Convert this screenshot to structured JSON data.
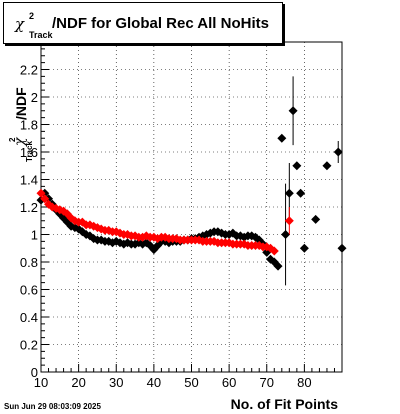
{
  "title": {
    "chi": "χ",
    "sup": "2",
    "sub": "Track",
    "text": "/NDF for Global Rec All NoHits"
  },
  "ylabel": {
    "chi": "χ",
    "sup": "2",
    "sub": "Track",
    "text": "/NDF"
  },
  "xlabel": "No. of Fit Points",
  "date": "Sun Jun 29 08:03:09 2025",
  "chart_data": {
    "type": "scatter",
    "xlim": [
      10,
      90
    ],
    "ylim": [
      0,
      2.4
    ],
    "xticks": [
      10,
      20,
      30,
      40,
      50,
      60,
      70,
      80
    ],
    "yticks": [
      0,
      0.2,
      0.4,
      0.6,
      0.8,
      1,
      1.2,
      1.4,
      1.6,
      1.8,
      2,
      2.2
    ],
    "grid": true,
    "series": [
      {
        "color": "#000000",
        "points": [
          {
            "x": 10,
            "y": 1.25
          },
          {
            "x": 11,
            "y": 1.3
          },
          {
            "x": 12,
            "y": 1.26
          },
          {
            "x": 13,
            "y": 1.22
          },
          {
            "x": 14,
            "y": 1.18
          },
          {
            "x": 15,
            "y": 1.15
          },
          {
            "x": 16,
            "y": 1.12
          },
          {
            "x": 17,
            "y": 1.09
          },
          {
            "x": 18,
            "y": 1.06
          },
          {
            "x": 19,
            "y": 1.05
          },
          {
            "x": 20,
            "y": 1.04
          },
          {
            "x": 21,
            "y": 1.02
          },
          {
            "x": 22,
            "y": 1.0
          },
          {
            "x": 23,
            "y": 0.99
          },
          {
            "x": 24,
            "y": 0.97
          },
          {
            "x": 25,
            "y": 0.96
          },
          {
            "x": 26,
            "y": 0.96
          },
          {
            "x": 27,
            "y": 0.95
          },
          {
            "x": 28,
            "y": 0.95
          },
          {
            "x": 29,
            "y": 0.94
          },
          {
            "x": 30,
            "y": 0.95
          },
          {
            "x": 31,
            "y": 0.94
          },
          {
            "x": 32,
            "y": 0.93
          },
          {
            "x": 33,
            "y": 0.94
          },
          {
            "x": 34,
            "y": 0.93
          },
          {
            "x": 35,
            "y": 0.93
          },
          {
            "x": 36,
            "y": 0.94
          },
          {
            "x": 37,
            "y": 0.93
          },
          {
            "x": 38,
            "y": 0.94
          },
          {
            "x": 39,
            "y": 0.92
          },
          {
            "x": 40,
            "y": 0.89
          },
          {
            "x": 41,
            "y": 0.92
          },
          {
            "x": 42,
            "y": 0.95
          },
          {
            "x": 43,
            "y": 0.95
          },
          {
            "x": 44,
            "y": 0.94
          },
          {
            "x": 45,
            "y": 0.95
          },
          {
            "x": 46,
            "y": 0.95
          },
          {
            "x": 47,
            "y": 0.95
          },
          {
            "x": 48,
            "y": 0.96
          },
          {
            "x": 49,
            "y": 0.96
          },
          {
            "x": 50,
            "y": 0.97
          },
          {
            "x": 51,
            "y": 0.97
          },
          {
            "x": 52,
            "y": 0.98
          },
          {
            "x": 53,
            "y": 0.99
          },
          {
            "x": 54,
            "y": 1.0
          },
          {
            "x": 55,
            "y": 1.01
          },
          {
            "x": 56,
            "y": 1.02
          },
          {
            "x": 57,
            "y": 1.02
          },
          {
            "x": 58,
            "y": 1.01
          },
          {
            "x": 59,
            "y": 1.0
          },
          {
            "x": 60,
            "y": 1.0
          },
          {
            "x": 61,
            "y": 1.01
          },
          {
            "x": 62,
            "y": 0.99
          },
          {
            "x": 63,
            "y": 0.99
          },
          {
            "x": 64,
            "y": 0.98
          },
          {
            "x": 65,
            "y": 0.99
          },
          {
            "x": 66,
            "y": 0.99
          },
          {
            "x": 67,
            "y": 0.98
          },
          {
            "x": 68,
            "y": 0.96
          },
          {
            "x": 69,
            "y": 0.93
          },
          {
            "x": 70,
            "y": 0.87
          },
          {
            "x": 71,
            "y": 0.82
          },
          {
            "x": 72,
            "y": 0.8
          },
          {
            "x": 73,
            "y": 0.77
          },
          {
            "x": 74,
            "y": 1.7
          },
          {
            "x": 75,
            "y": 1.0,
            "err": 0.37
          },
          {
            "x": 76,
            "y": 1.3,
            "err": 0.22
          },
          {
            "x": 77,
            "y": 1.9,
            "err": 0.25
          },
          {
            "x": 78,
            "y": 1.5
          },
          {
            "x": 79,
            "y": 1.3
          },
          {
            "x": 80,
            "y": 0.9
          },
          {
            "x": 83,
            "y": 1.11
          },
          {
            "x": 86,
            "y": 1.5
          },
          {
            "x": 89,
            "y": 1.6,
            "err": 0.08
          },
          {
            "x": 90,
            "y": 0.9
          }
        ]
      },
      {
        "color": "#ff0000",
        "points": [
          {
            "x": 10,
            "y": 1.3
          },
          {
            "x": 11,
            "y": 1.26
          },
          {
            "x": 12,
            "y": 1.22
          },
          {
            "x": 13,
            "y": 1.2
          },
          {
            "x": 14,
            "y": 1.19
          },
          {
            "x": 15,
            "y": 1.18
          },
          {
            "x": 16,
            "y": 1.17
          },
          {
            "x": 17,
            "y": 1.15
          },
          {
            "x": 18,
            "y": 1.12
          },
          {
            "x": 19,
            "y": 1.1
          },
          {
            "x": 20,
            "y": 1.09
          },
          {
            "x": 21,
            "y": 1.09
          },
          {
            "x": 22,
            "y": 1.07
          },
          {
            "x": 23,
            "y": 1.07
          },
          {
            "x": 24,
            "y": 1.06
          },
          {
            "x": 25,
            "y": 1.05
          },
          {
            "x": 26,
            "y": 1.04
          },
          {
            "x": 27,
            "y": 1.03
          },
          {
            "x": 28,
            "y": 1.03
          },
          {
            "x": 29,
            "y": 1.02
          },
          {
            "x": 30,
            "y": 1.02
          },
          {
            "x": 31,
            "y": 1.01
          },
          {
            "x": 32,
            "y": 1.0
          },
          {
            "x": 33,
            "y": 1.0
          },
          {
            "x": 34,
            "y": 0.99
          },
          {
            "x": 35,
            "y": 0.99
          },
          {
            "x": 36,
            "y": 0.98
          },
          {
            "x": 37,
            "y": 0.98
          },
          {
            "x": 38,
            "y": 0.99
          },
          {
            "x": 39,
            "y": 0.98
          },
          {
            "x": 40,
            "y": 0.98
          },
          {
            "x": 41,
            "y": 0.97
          },
          {
            "x": 42,
            "y": 0.98
          },
          {
            "x": 43,
            "y": 0.98
          },
          {
            "x": 44,
            "y": 0.97
          },
          {
            "x": 45,
            "y": 0.97
          },
          {
            "x": 46,
            "y": 0.97
          },
          {
            "x": 47,
            "y": 0.96
          },
          {
            "x": 48,
            "y": 0.96
          },
          {
            "x": 49,
            "y": 0.96
          },
          {
            "x": 50,
            "y": 0.96
          },
          {
            "x": 51,
            "y": 0.96
          },
          {
            "x": 52,
            "y": 0.96
          },
          {
            "x": 53,
            "y": 0.95
          },
          {
            "x": 54,
            "y": 0.95
          },
          {
            "x": 55,
            "y": 0.95
          },
          {
            "x": 56,
            "y": 0.95
          },
          {
            "x": 57,
            "y": 0.94
          },
          {
            "x": 58,
            "y": 0.94
          },
          {
            "x": 59,
            "y": 0.94
          },
          {
            "x": 60,
            "y": 0.94
          },
          {
            "x": 61,
            "y": 0.93
          },
          {
            "x": 62,
            "y": 0.93
          },
          {
            "x": 63,
            "y": 0.93
          },
          {
            "x": 64,
            "y": 0.93
          },
          {
            "x": 65,
            "y": 0.92
          },
          {
            "x": 66,
            "y": 0.92
          },
          {
            "x": 67,
            "y": 0.92
          },
          {
            "x": 68,
            "y": 0.92
          },
          {
            "x": 69,
            "y": 0.91
          },
          {
            "x": 70,
            "y": 0.91
          },
          {
            "x": 71,
            "y": 0.9
          },
          {
            "x": 72,
            "y": 0.88
          },
          {
            "x": 76,
            "y": 1.1,
            "err": 0.1
          }
        ]
      }
    ]
  }
}
